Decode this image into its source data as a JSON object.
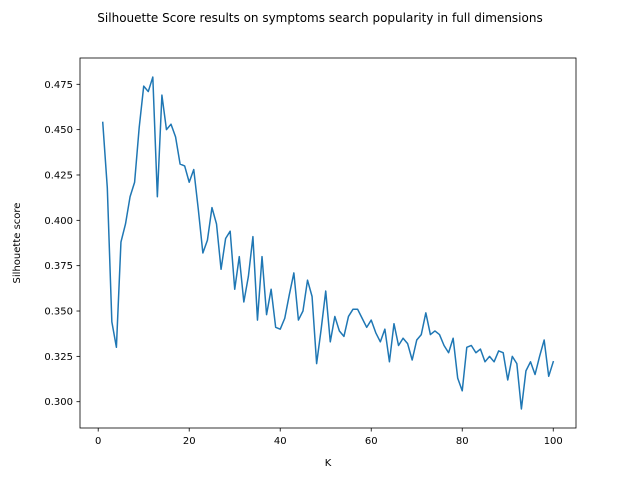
{
  "chart_data": {
    "type": "line",
    "title": "Silhouette Score results on symptoms search popularity in full dimensions",
    "xlabel": "K",
    "ylabel": "Silhouette score",
    "xlim": [
      -4,
      105
    ],
    "ylim": [
      0.2855,
      0.4895
    ],
    "xticks": [
      0,
      20,
      40,
      60,
      80,
      100
    ],
    "yticks": [
      0.3,
      0.325,
      0.35,
      0.375,
      0.4,
      0.425,
      0.45,
      0.475
    ],
    "ytick_labels": [
      "0.300",
      "0.325",
      "0.350",
      "0.375",
      "0.400",
      "0.425",
      "0.450",
      "0.475"
    ],
    "grid": false,
    "series": [
      {
        "color": "#1f77b4",
        "x": [
          1,
          2,
          3,
          4,
          5,
          6,
          7,
          8,
          9,
          10,
          11,
          12,
          13,
          14,
          15,
          16,
          17,
          18,
          19,
          20,
          21,
          22,
          23,
          24,
          25,
          26,
          27,
          28,
          29,
          30,
          31,
          32,
          33,
          34,
          35,
          36,
          37,
          38,
          39,
          40,
          41,
          42,
          43,
          44,
          45,
          46,
          47,
          48,
          49,
          50,
          51,
          52,
          53,
          54,
          55,
          56,
          57,
          58,
          59,
          60,
          61,
          62,
          63,
          64,
          65,
          66,
          67,
          68,
          69,
          70,
          71,
          72,
          73,
          74,
          75,
          76,
          77,
          78,
          79,
          80,
          81,
          82,
          83,
          84,
          85,
          86,
          87,
          88,
          89,
          90,
          91,
          92,
          93,
          94,
          95,
          96,
          97,
          98,
          99,
          100
        ],
        "y": [
          0.454,
          0.418,
          0.344,
          0.33,
          0.388,
          0.398,
          0.413,
          0.421,
          0.451,
          0.474,
          0.471,
          0.479,
          0.413,
          0.469,
          0.45,
          0.453,
          0.446,
          0.431,
          0.43,
          0.421,
          0.428,
          0.406,
          0.382,
          0.389,
          0.407,
          0.398,
          0.373,
          0.39,
          0.394,
          0.362,
          0.38,
          0.355,
          0.369,
          0.391,
          0.345,
          0.38,
          0.348,
          0.362,
          0.341,
          0.34,
          0.346,
          0.359,
          0.371,
          0.345,
          0.35,
          0.367,
          0.358,
          0.321,
          0.34,
          0.361,
          0.333,
          0.347,
          0.339,
          0.336,
          0.347,
          0.351,
          0.351,
          0.346,
          0.341,
          0.345,
          0.338,
          0.333,
          0.34,
          0.322,
          0.343,
          0.331,
          0.335,
          0.332,
          0.323,
          0.334,
          0.337,
          0.349,
          0.337,
          0.339,
          0.337,
          0.331,
          0.327,
          0.335,
          0.313,
          0.306,
          0.33,
          0.331,
          0.327,
          0.329,
          0.322,
          0.325,
          0.322,
          0.328,
          0.327,
          0.312,
          0.325,
          0.321,
          0.296,
          0.317,
          0.322,
          0.315,
          0.325,
          0.334,
          0.314,
          0.322
        ]
      }
    ]
  }
}
